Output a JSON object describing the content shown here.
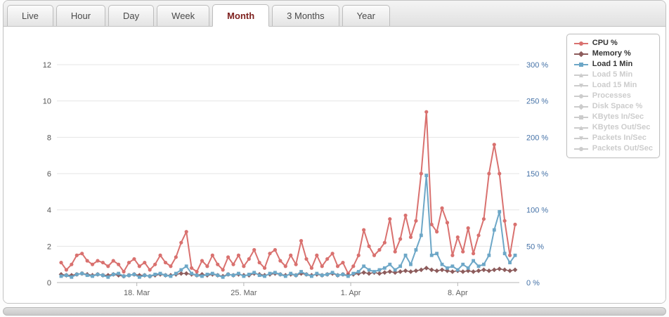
{
  "tabs": {
    "items": [
      {
        "label": "Live",
        "active": false
      },
      {
        "label": "Hour",
        "active": false
      },
      {
        "label": "Day",
        "active": false
      },
      {
        "label": "Week",
        "active": false
      },
      {
        "label": "Month",
        "active": true
      },
      {
        "label": "3 Months",
        "active": false
      },
      {
        "label": "Year",
        "active": false
      }
    ]
  },
  "chart": {
    "legend": [
      {
        "label": "CPU %",
        "marker": "circle",
        "color": "#d9716f",
        "enabled": true
      },
      {
        "label": "Memory %",
        "marker": "diamond",
        "color": "#8d5c5c",
        "enabled": true
      },
      {
        "label": "Load 1 Min",
        "marker": "square",
        "color": "#6da7c7",
        "enabled": true
      },
      {
        "label": "Load 5 Min",
        "marker": "triangle",
        "color": "#cccccc",
        "enabled": false
      },
      {
        "label": "Load 15 Min",
        "marker": "triangle-down",
        "color": "#cccccc",
        "enabled": false
      },
      {
        "label": "Processes",
        "marker": "circle",
        "color": "#cccccc",
        "enabled": false
      },
      {
        "label": "Disk Space %",
        "marker": "diamond",
        "color": "#cccccc",
        "enabled": false
      },
      {
        "label": "KBytes In/Sec",
        "marker": "square",
        "color": "#cccccc",
        "enabled": false
      },
      {
        "label": "KBytes Out/Sec",
        "marker": "triangle",
        "color": "#cccccc",
        "enabled": false
      },
      {
        "label": "Packets In/Sec",
        "marker": "triangle-down",
        "color": "#cccccc",
        "enabled": false
      },
      {
        "label": "Packets Out/Sec",
        "marker": "circle",
        "color": "#cccccc",
        "enabled": false
      }
    ]
  },
  "chart_data": {
    "type": "line",
    "note": "Month view. Left axis = load units, right axis = percent (right % = left value x 25). Percent series (CPU %, Memory %) read against the right axis.",
    "grid": true,
    "legend_position": "top-right",
    "x_ticks": [
      {
        "index": 14.5,
        "label": "18. Mar"
      },
      {
        "index": 35.0,
        "label": "25. Mar"
      },
      {
        "index": 55.5,
        "label": "1. Apr"
      },
      {
        "index": 76.0,
        "label": "8. Apr"
      }
    ],
    "y_left": {
      "min": 0,
      "max": 12,
      "step": 2,
      "color": "#555555"
    },
    "y_right": {
      "min": 0,
      "max": 300,
      "step": 50,
      "suffix": " %",
      "color": "#4572a7"
    },
    "series": [
      {
        "name": "CPU %",
        "color": "#d9716f",
        "marker": "circle",
        "width": 2,
        "msize": 2.6,
        "values": [
          1.1,
          0.7,
          1.0,
          1.5,
          1.6,
          1.2,
          1.0,
          1.2,
          1.1,
          0.9,
          1.2,
          1.0,
          0.6,
          1.1,
          1.3,
          0.9,
          1.1,
          0.7,
          1.0,
          1.5,
          1.1,
          0.9,
          1.4,
          2.2,
          2.8,
          0.8,
          0.6,
          1.2,
          0.9,
          1.5,
          1.0,
          0.7,
          1.4,
          1.0,
          1.5,
          0.9,
          1.3,
          1.8,
          1.1,
          0.8,
          1.6,
          1.8,
          1.2,
          0.9,
          1.5,
          1.0,
          2.3,
          1.3,
          0.8,
          1.5,
          0.9,
          1.3,
          1.6,
          0.9,
          1.1,
          0.5,
          0.9,
          1.5,
          2.9,
          2.0,
          1.5,
          1.8,
          2.2,
          3.5,
          1.7,
          2.4,
          3.7,
          2.5,
          3.4,
          6.0,
          9.4,
          3.2,
          2.8,
          4.1,
          3.3,
          1.5,
          2.5,
          1.7,
          3.0,
          1.6,
          2.6,
          3.5,
          6.0,
          7.6,
          6.0,
          3.4,
          1.5,
          3.2
        ]
      },
      {
        "name": "Memory %",
        "color": "#8d5c5c",
        "marker": "diamond",
        "width": 1.5,
        "msize": 2.4,
        "values": [
          0.45,
          0.4,
          0.4,
          0.45,
          0.5,
          0.45,
          0.4,
          0.45,
          0.4,
          0.4,
          0.45,
          0.4,
          0.35,
          0.4,
          0.45,
          0.4,
          0.4,
          0.35,
          0.4,
          0.45,
          0.4,
          0.4,
          0.45,
          0.5,
          0.5,
          0.45,
          0.4,
          0.45,
          0.4,
          0.45,
          0.4,
          0.35,
          0.45,
          0.4,
          0.45,
          0.4,
          0.4,
          0.5,
          0.45,
          0.4,
          0.45,
          0.5,
          0.45,
          0.4,
          0.45,
          0.4,
          0.5,
          0.45,
          0.4,
          0.45,
          0.4,
          0.45,
          0.5,
          0.4,
          0.45,
          0.4,
          0.45,
          0.5,
          0.55,
          0.5,
          0.55,
          0.5,
          0.55,
          0.6,
          0.55,
          0.6,
          0.65,
          0.6,
          0.65,
          0.7,
          0.8,
          0.7,
          0.65,
          0.7,
          0.65,
          0.6,
          0.65,
          0.6,
          0.65,
          0.6,
          0.65,
          0.7,
          0.65,
          0.7,
          0.75,
          0.7,
          0.65,
          0.7
        ]
      },
      {
        "name": "Load 1 Min",
        "color": "#6da7c7",
        "marker": "square",
        "width": 2,
        "msize": 2.4,
        "values": [
          0.35,
          0.4,
          0.3,
          0.45,
          0.5,
          0.4,
          0.35,
          0.45,
          0.4,
          0.3,
          0.45,
          0.5,
          0.35,
          0.4,
          0.45,
          0.3,
          0.4,
          0.35,
          0.45,
          0.5,
          0.4,
          0.35,
          0.5,
          0.7,
          0.9,
          0.5,
          0.4,
          0.35,
          0.45,
          0.5,
          0.4,
          0.3,
          0.45,
          0.4,
          0.5,
          0.35,
          0.45,
          0.55,
          0.4,
          0.35,
          0.5,
          0.55,
          0.45,
          0.35,
          0.5,
          0.4,
          0.6,
          0.45,
          0.35,
          0.5,
          0.4,
          0.45,
          0.55,
          0.4,
          0.45,
          0.35,
          0.5,
          0.6,
          0.9,
          0.7,
          0.6,
          0.7,
          0.8,
          1.0,
          0.7,
          0.9,
          1.5,
          1.0,
          1.8,
          2.6,
          5.9,
          1.5,
          1.6,
          1.0,
          0.8,
          0.9,
          0.7,
          1.0,
          0.8,
          1.2,
          0.9,
          1.0,
          1.5,
          2.9,
          3.9,
          1.6,
          1.1,
          1.5
        ]
      }
    ]
  },
  "colors": {
    "active_tab_text": "#7e211f",
    "grid_line": "#e4e4e4",
    "axis_line": "#b5b5b5",
    "axis_text": "#555555",
    "right_axis_text": "#4572a7",
    "disabled_legend": "#cccccc"
  }
}
